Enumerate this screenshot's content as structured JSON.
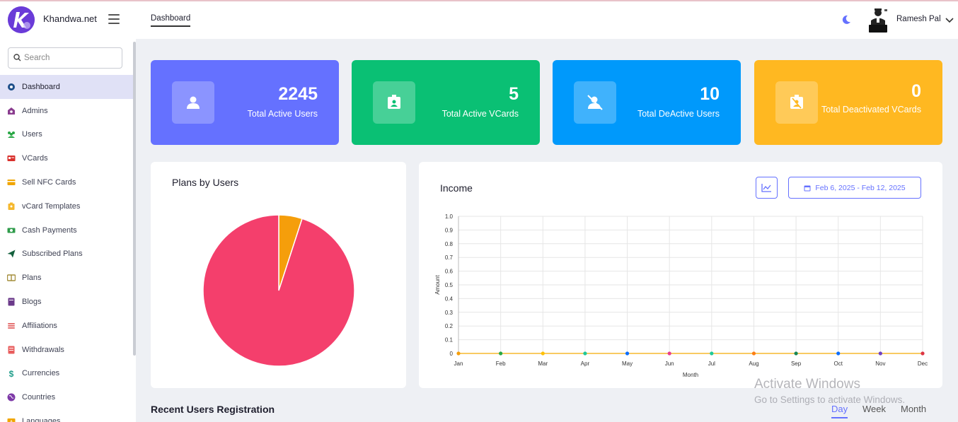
{
  "app": {
    "brand": "Khandwa.net"
  },
  "header": {
    "active_tab": "Dashboard",
    "user_name": "Ramesh Pal"
  },
  "sidebar": {
    "search_placeholder": "Search",
    "items": [
      {
        "label": "Dashboard",
        "icon": "dashboard-icon",
        "color": "#1e4f8a",
        "active": true
      },
      {
        "label": "Admins",
        "icon": "admins-icon",
        "color": "#8a3d8f"
      },
      {
        "label": "Users",
        "icon": "users-icon",
        "color": "#28a745"
      },
      {
        "label": "VCards",
        "icon": "vcards-icon",
        "color": "#d9302c"
      },
      {
        "label": "Sell NFC Cards",
        "icon": "nfc-card-icon",
        "color": "#f0a500"
      },
      {
        "label": "vCard Templates",
        "icon": "templates-icon",
        "color": "#f5b82e"
      },
      {
        "label": "Cash Payments",
        "icon": "cash-icon",
        "color": "#2e9b4a"
      },
      {
        "label": "Subscribed Plans",
        "icon": "paper-plane-icon",
        "color": "#14603d"
      },
      {
        "label": "Plans",
        "icon": "plans-icon",
        "color": "#a48d3a"
      },
      {
        "label": "Blogs",
        "icon": "blogs-icon",
        "color": "#6b3a8a"
      },
      {
        "label": "Affiliations",
        "icon": "affiliations-icon",
        "color": "#e57373"
      },
      {
        "label": "Withdrawals",
        "icon": "withdrawals-icon",
        "color": "#e85d5d"
      },
      {
        "label": "Currencies",
        "icon": "dollar-icon",
        "color": "#1f9d8a"
      },
      {
        "label": "Countries",
        "icon": "globe-icon",
        "color": "#7e3aa8"
      },
      {
        "label": "Languages",
        "icon": "languages-icon",
        "color": "#f0a500"
      }
    ]
  },
  "stats": [
    {
      "value": "2245",
      "label": "Total Active Users",
      "color": "#6571ff",
      "icon": "user-icon"
    },
    {
      "value": "5",
      "label": "Total Active VCards",
      "color": "#0ac074",
      "icon": "id-card-icon"
    },
    {
      "value": "10",
      "label": "Total DeActive Users",
      "color": "#0099fb",
      "icon": "user-slash-icon"
    },
    {
      "value": "0",
      "label": "Total Deactivated VCards",
      "color": "#ffb821",
      "icon": "id-card-slash-icon"
    }
  ],
  "plans_panel": {
    "title": "Plans by Users"
  },
  "income_panel": {
    "title": "Income",
    "date_range": "Feb 6, 2025 - Feb 12, 2025"
  },
  "chart_data": [
    {
      "type": "pie",
      "title": "Plans by Users",
      "values": [
        95,
        5
      ],
      "colors": [
        "#f43f6c",
        "#f59e0b"
      ]
    },
    {
      "type": "line",
      "title": "Income",
      "xlabel": "Month",
      "ylabel": "Amount",
      "categories": [
        "Jan",
        "Feb",
        "Mar",
        "Apr",
        "May",
        "Jun",
        "Jul",
        "Aug",
        "Sep",
        "Oct",
        "Nov",
        "Dec"
      ],
      "values": [
        0,
        0,
        0,
        0,
        0,
        0,
        0,
        0,
        0,
        0,
        0,
        0
      ],
      "ylim": [
        0,
        1
      ],
      "yticks": [
        "0",
        "0.1",
        "0.2",
        "0.3",
        "0.4",
        "0.5",
        "0.6",
        "0.7",
        "0.8",
        "0.9",
        "1.0"
      ],
      "point_colors": [
        "#f59e0b",
        "#28a745",
        "#ffc107",
        "#20c997",
        "#0d6efd",
        "#e83e8c",
        "#20c997",
        "#fd7e14",
        "#198754",
        "#0d6efd",
        "#6f42c1",
        "#dc3545"
      ],
      "line_color": "#f5b82e",
      "grid": true
    }
  ],
  "recent_section": {
    "title": "Recent Users Registration",
    "periods": [
      "Day",
      "Week",
      "Month"
    ]
  },
  "watermark": {
    "line1": "Activate Windows",
    "line2": "Go to Settings to activate Windows."
  }
}
